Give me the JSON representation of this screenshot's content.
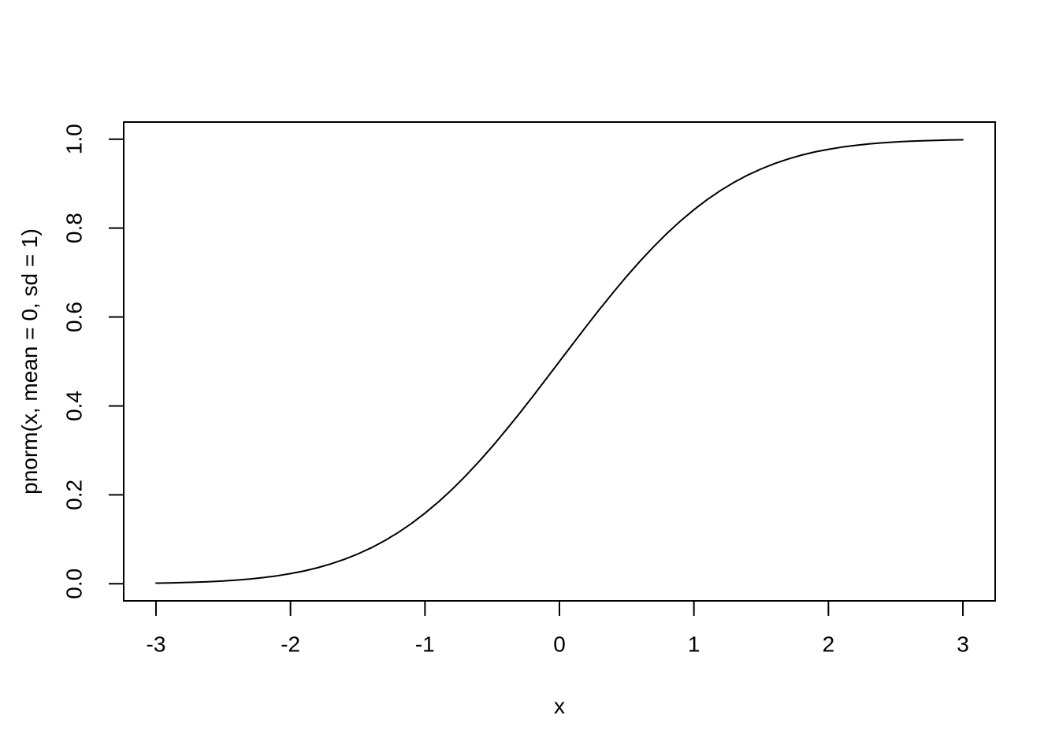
{
  "chart_data": {
    "type": "line",
    "title": "",
    "xlabel": "x",
    "ylabel": "pnorm(x, mean = 0, sd = 1)",
    "x_ticks": [
      -3,
      -2,
      -1,
      0,
      1,
      2,
      3
    ],
    "y_ticks": [
      "0.0",
      "0.2",
      "0.4",
      "0.6",
      "0.8",
      "1.0"
    ],
    "xlim": [
      -3.24,
      3.24
    ],
    "ylim": [
      -0.0385,
      1.0385
    ],
    "grid": false,
    "legend": false,
    "background": "#ffffff",
    "axis_color": "#000000",
    "series": [
      {
        "name": "pnorm(x, mean = 0, sd = 1)",
        "color": "#000000",
        "x": [
          -3,
          -2.9,
          -2.8,
          -2.7,
          -2.6,
          -2.5,
          -2.4,
          -2.3,
          -2.2,
          -2.1,
          -2,
          -1.9,
          -1.8,
          -1.7,
          -1.6,
          -1.5,
          -1.4,
          -1.3,
          -1.2,
          -1.1,
          -1,
          -0.9,
          -0.8,
          -0.7,
          -0.6,
          -0.5,
          -0.4,
          -0.3,
          -0.2,
          -0.1,
          0,
          0.1,
          0.2,
          0.3,
          0.4,
          0.5,
          0.6,
          0.7,
          0.8,
          0.9,
          1,
          1.1,
          1.2,
          1.3,
          1.4,
          1.5,
          1.6,
          1.7,
          1.8,
          1.9,
          2,
          2.1,
          2.2,
          2.3,
          2.4,
          2.5,
          2.6,
          2.7,
          2.8,
          2.9,
          3
        ],
        "y": [
          0.00135,
          0.00187,
          0.00256,
          0.00347,
          0.00466,
          0.00621,
          0.0082,
          0.01072,
          0.0139,
          0.01786,
          0.02275,
          0.02872,
          0.03593,
          0.04457,
          0.0548,
          0.06681,
          0.08076,
          0.0968,
          0.11507,
          0.13567,
          0.15866,
          0.18406,
          0.21186,
          0.24196,
          0.27425,
          0.30854,
          0.34458,
          0.38209,
          0.42074,
          0.46017,
          0.5,
          0.53983,
          0.57926,
          0.61791,
          0.65542,
          0.69146,
          0.72575,
          0.75804,
          0.78814,
          0.81594,
          0.84134,
          0.86433,
          0.88493,
          0.9032,
          0.91924,
          0.93319,
          0.9452,
          0.95543,
          0.96407,
          0.97128,
          0.97725,
          0.98214,
          0.9861,
          0.98928,
          0.9918,
          0.99379,
          0.99534,
          0.99653,
          0.99744,
          0.99813,
          0.99865
        ]
      }
    ]
  }
}
